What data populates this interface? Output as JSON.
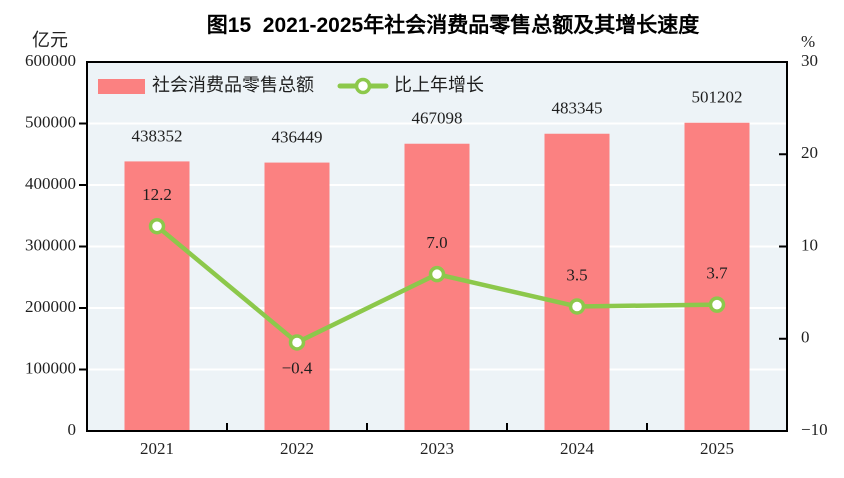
{
  "title": "图15  2021-2025年社会消费品零售总额及其增长速度",
  "colors": {
    "bar": "#fb8181",
    "line": "#8cc84b",
    "marker_fill": "#ffffff",
    "plot_background": "#edf3f7",
    "gridline": "#ffffff",
    "frame": "#000000",
    "text": "#1f1f1f"
  },
  "legend": {
    "items": [
      {
        "type": "bar",
        "label": "社会消费品零售总额"
      },
      {
        "type": "line",
        "label": "比上年增长"
      }
    ]
  },
  "chart_data": {
    "type": "bar+line combo",
    "title": "图15  2021-2025年社会消费品零售总额及其增长速度",
    "categories": [
      "2021",
      "2022",
      "2023",
      "2024",
      "2025"
    ],
    "series": [
      {
        "name": "社会消费品零售总额",
        "type": "bar",
        "axis": "left",
        "values": [
          438352,
          436449,
          467098,
          483345,
          501202
        ],
        "color": "#fb8181"
      },
      {
        "name": "比上年增长",
        "type": "line",
        "axis": "right",
        "values": [
          12.2,
          -0.4,
          7.0,
          3.5,
          3.7
        ],
        "color": "#8cc84b",
        "marker": "hollow-circle"
      }
    ],
    "data_labels": {
      "bar": [
        "438352",
        "436449",
        "467098",
        "483345",
        "501202"
      ],
      "line": [
        "12.2",
        "−0.4",
        "7.0",
        "3.5",
        "3.7"
      ]
    },
    "left_axis": {
      "unit": "亿元",
      "min": 0,
      "max": 600000,
      "interval": 100000,
      "tick_values": [
        0,
        100000,
        200000,
        300000,
        400000,
        500000,
        600000
      ],
      "tick_labels": [
        "0",
        "100000",
        "200000",
        "300000",
        "400000",
        "500000",
        "600000"
      ]
    },
    "right_axis": {
      "unit": "%",
      "min": -10,
      "max": 30,
      "interval": 10,
      "tick_values": [
        -10,
        0,
        10,
        20,
        30
      ],
      "tick_labels": [
        "−10",
        "0",
        "10",
        "20",
        "30"
      ]
    },
    "grid": "horizontal white lines at left-axis ticks",
    "legend_position": "inside top-left"
  }
}
